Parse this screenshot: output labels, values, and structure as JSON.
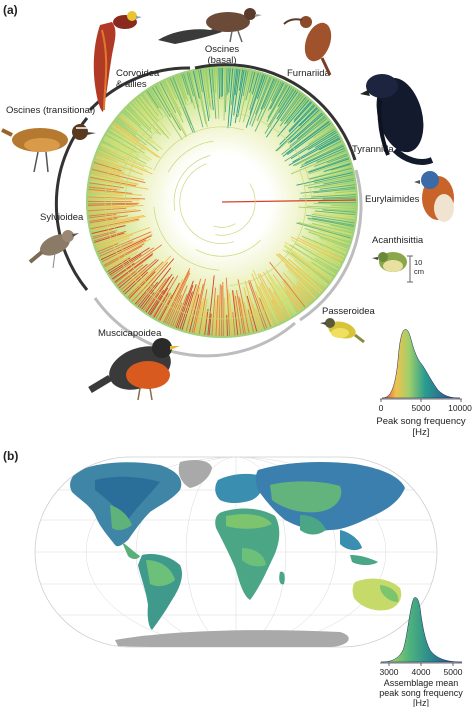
{
  "panel_a": {
    "label": "(a)",
    "clades": [
      {
        "id": "oscines-basal",
        "line1": "Oscines",
        "line2": "(basal)"
      },
      {
        "id": "furnariida",
        "line1": "Furnariida"
      },
      {
        "id": "corvoidea",
        "line1": "Corvoidea",
        "line2": "& allies"
      },
      {
        "id": "oscines-transitional",
        "line1": "Oscines (transitional)"
      },
      {
        "id": "tyrannida",
        "line1": "Tyrannida"
      },
      {
        "id": "eurylaimides",
        "line1": "Eurylaimides"
      },
      {
        "id": "sylvioidea",
        "line1": "Sylvioidea"
      },
      {
        "id": "acanthisittia",
        "line1": "Acanthisittia"
      },
      {
        "id": "passeroidea",
        "line1": "Passeroidea"
      },
      {
        "id": "muscicapoidea",
        "line1": "Muscicapoidea"
      }
    ],
    "scale_bar": {
      "line1": "10",
      "line2": "cm"
    },
    "legend": {
      "ticks": [
        "0",
        "5000",
        "10000"
      ],
      "title_line1": "Peak song frequency",
      "title_line2": "[Hz]"
    }
  },
  "panel_b": {
    "label": "(b)",
    "legend": {
      "ticks": [
        "3000",
        "4000",
        "5000"
      ],
      "title_line1": "Assemblage mean",
      "title_line2": "peak song frequency",
      "title_line3": "[Hz]"
    }
  },
  "colors": {
    "low": "#2c3f8f",
    "mid_low": "#2a9d8f",
    "mid": "#9fcf6a",
    "mid_high": "#f2c14e",
    "high": "#d7412a",
    "land_gray": "#a9a9a9",
    "ring": "#333333"
  }
}
